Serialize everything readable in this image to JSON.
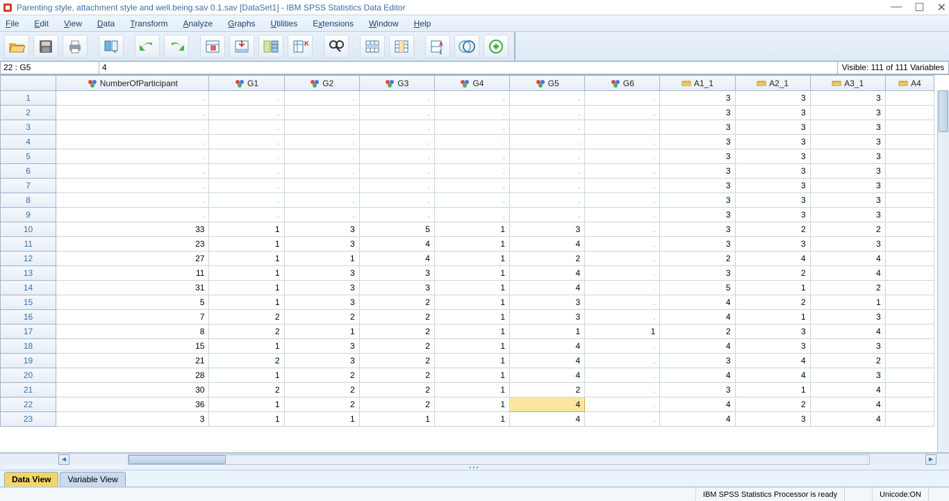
{
  "window": {
    "title": "Parenting style, attachment style and well.being.sav 0.1.sav [DataSet1] - IBM SPSS Statistics Data Editor"
  },
  "menu": {
    "file": "File",
    "edit": "Edit",
    "view": "View",
    "data": "Data",
    "transform": "Transform",
    "analyze": "Analyze",
    "graphs": "Graphs",
    "utilities": "Utilities",
    "extensions": "Extensions",
    "window": "Window",
    "help": "Help"
  },
  "refbar": {
    "cellref": "22 : G5",
    "cellval": "4",
    "visible": "Visible: 111 of 111 Variables"
  },
  "columns": [
    {
      "name": "NumberOfParticipant",
      "type": "nominal",
      "width": "col-part"
    },
    {
      "name": "G1",
      "type": "nominal",
      "width": "col-g"
    },
    {
      "name": "G2",
      "type": "nominal",
      "width": "col-g"
    },
    {
      "name": "G3",
      "type": "nominal",
      "width": "col-g"
    },
    {
      "name": "G4",
      "type": "nominal",
      "width": "col-g"
    },
    {
      "name": "G5",
      "type": "nominal",
      "width": "col-g"
    },
    {
      "name": "G6",
      "type": "nominal",
      "width": "col-g"
    },
    {
      "name": "A1_1",
      "type": "scale",
      "width": "col-a"
    },
    {
      "name": "A2_1",
      "type": "scale",
      "width": "col-a"
    },
    {
      "name": "A3_1",
      "type": "scale",
      "width": "col-a"
    },
    {
      "name": "A4",
      "type": "scale",
      "width": "col-a4"
    }
  ],
  "rows": [
    {
      "n": 1,
      "v": [
        ".",
        ".",
        ".",
        ".",
        ".",
        ".",
        ".",
        "3",
        "3",
        "3",
        ""
      ]
    },
    {
      "n": 2,
      "v": [
        ".",
        ".",
        ".",
        ".",
        ".",
        ".",
        ".",
        "3",
        "3",
        "3",
        ""
      ]
    },
    {
      "n": 3,
      "v": [
        ".",
        ".",
        ".",
        ".",
        ".",
        ".",
        ".",
        "3",
        "3",
        "3",
        ""
      ]
    },
    {
      "n": 4,
      "v": [
        ".",
        ".",
        ".",
        ".",
        ".",
        ".",
        ".",
        "3",
        "3",
        "3",
        ""
      ]
    },
    {
      "n": 5,
      "v": [
        ".",
        ".",
        ".",
        ".",
        ".",
        ".",
        ".",
        "3",
        "3",
        "3",
        ""
      ]
    },
    {
      "n": 6,
      "v": [
        ".",
        ".",
        ".",
        ".",
        ".",
        ".",
        ".",
        "3",
        "3",
        "3",
        ""
      ]
    },
    {
      "n": 7,
      "v": [
        ".",
        ".",
        ".",
        ".",
        ".",
        ".",
        ".",
        "3",
        "3",
        "3",
        ""
      ]
    },
    {
      "n": 8,
      "v": [
        ".",
        ".",
        ".",
        ".",
        ".",
        ".",
        ".",
        "3",
        "3",
        "3",
        ""
      ]
    },
    {
      "n": 9,
      "v": [
        ".",
        ".",
        ".",
        ".",
        ".",
        ".",
        ".",
        "3",
        "3",
        "3",
        ""
      ]
    },
    {
      "n": 10,
      "v": [
        "33",
        "1",
        "3",
        "5",
        "1",
        "3",
        ".",
        "3",
        "2",
        "2",
        ""
      ]
    },
    {
      "n": 11,
      "v": [
        "23",
        "1",
        "3",
        "4",
        "1",
        "4",
        ".",
        "3",
        "3",
        "3",
        ""
      ]
    },
    {
      "n": 12,
      "v": [
        "27",
        "1",
        "1",
        "4",
        "1",
        "2",
        ".",
        "2",
        "4",
        "4",
        ""
      ]
    },
    {
      "n": 13,
      "v": [
        "11",
        "1",
        "3",
        "3",
        "1",
        "4",
        ".",
        "3",
        "2",
        "4",
        ""
      ]
    },
    {
      "n": 14,
      "v": [
        "31",
        "1",
        "3",
        "3",
        "1",
        "4",
        ".",
        "5",
        "1",
        "2",
        ""
      ]
    },
    {
      "n": 15,
      "v": [
        "5",
        "1",
        "3",
        "2",
        "1",
        "3",
        ".",
        "4",
        "2",
        "1",
        ""
      ]
    },
    {
      "n": 16,
      "v": [
        "7",
        "2",
        "2",
        "2",
        "1",
        "3",
        ".",
        "4",
        "1",
        "3",
        ""
      ]
    },
    {
      "n": 17,
      "v": [
        "8",
        "2",
        "1",
        "2",
        "1",
        "1",
        "1",
        "2",
        "3",
        "4",
        ""
      ]
    },
    {
      "n": 18,
      "v": [
        "15",
        "1",
        "3",
        "2",
        "1",
        "4",
        ".",
        "4",
        "3",
        "3",
        ""
      ]
    },
    {
      "n": 19,
      "v": [
        "21",
        "2",
        "3",
        "2",
        "1",
        "4",
        ".",
        "3",
        "4",
        "2",
        ""
      ]
    },
    {
      "n": 20,
      "v": [
        "28",
        "1",
        "2",
        "2",
        "1",
        "4",
        ".",
        "4",
        "4",
        "3",
        ""
      ]
    },
    {
      "n": 21,
      "v": [
        "30",
        "2",
        "2",
        "2",
        "1",
        "2",
        ".",
        "3",
        "1",
        "4",
        ""
      ]
    },
    {
      "n": 22,
      "v": [
        "36",
        "1",
        "2",
        "2",
        "1",
        "4",
        ".",
        "4",
        "2",
        "4",
        ""
      ]
    },
    {
      "n": 23,
      "v": [
        "3",
        "1",
        "1",
        "1",
        "1",
        "4",
        ".",
        "4",
        "3",
        "4",
        ""
      ]
    }
  ],
  "selected": {
    "row": 22,
    "col": 5
  },
  "tabs": {
    "data": "Data View",
    "variable": "Variable View"
  },
  "status": {
    "processor": "IBM SPSS Statistics Processor is ready",
    "unicode": "Unicode:ON"
  },
  "colors": {
    "titlebar_text": "#3a6ea5",
    "grid_border": "#c6d5e4",
    "header_bg": "#e6eef6",
    "sel_bg": "#fce59f"
  }
}
